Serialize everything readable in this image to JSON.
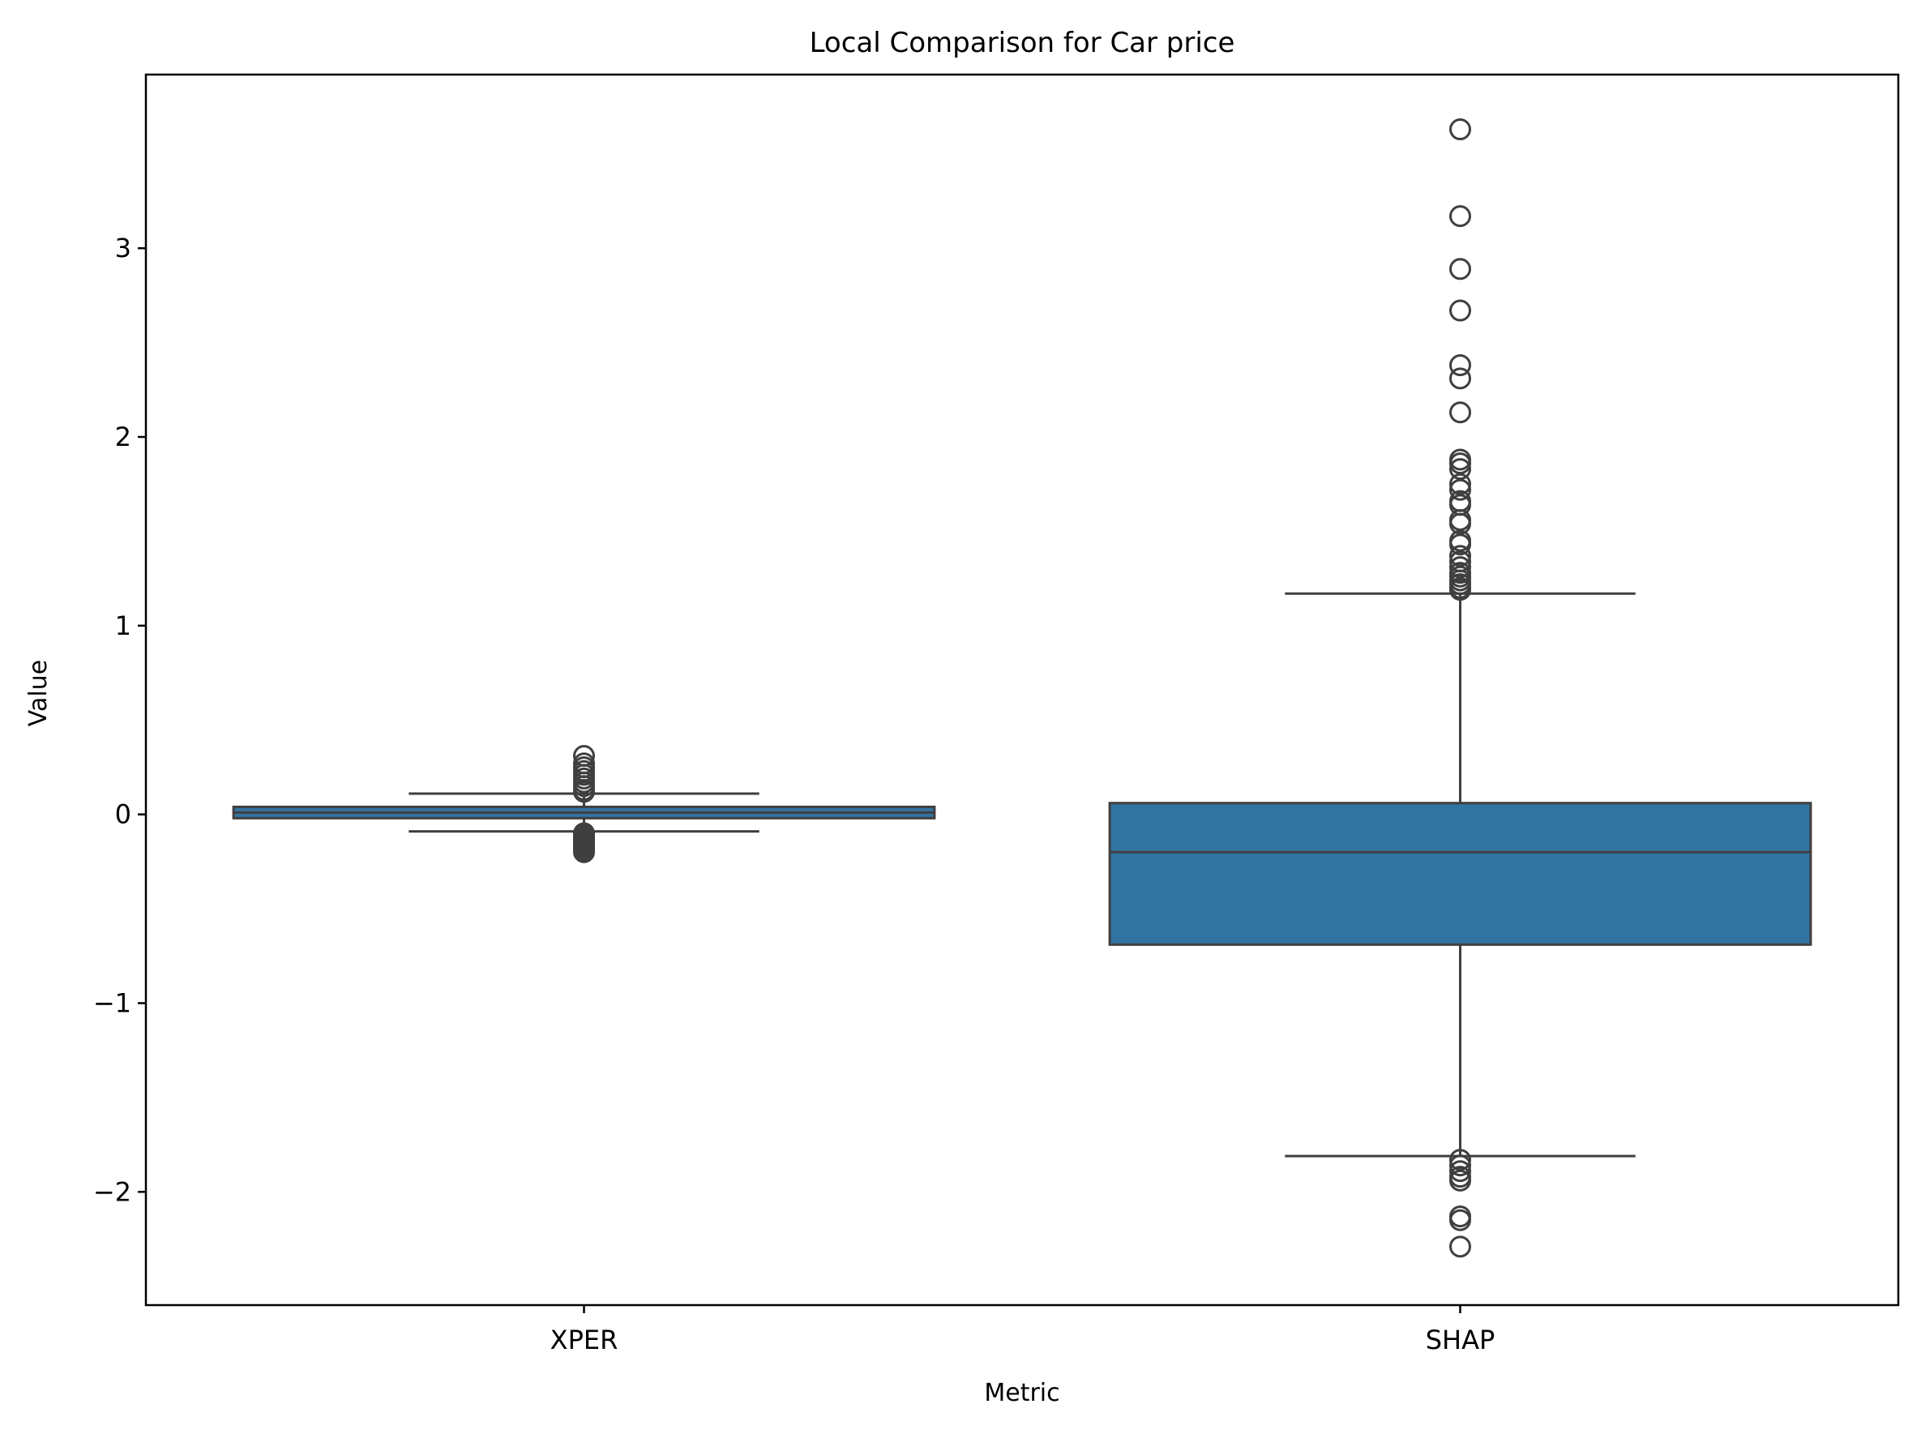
{
  "chart_data": {
    "type": "box",
    "title": "Local Comparison for Car price",
    "xlabel": "Metric",
    "ylabel": "Value",
    "ylim": [
      -2.6,
      3.92
    ],
    "yticks": [
      -2,
      -1,
      0,
      1,
      2,
      3
    ],
    "ytick_labels": [
      "−2",
      "−1",
      "0",
      "1",
      "2",
      "3"
    ],
    "categories": [
      "XPER",
      "SHAP"
    ],
    "box_color": "#3274a1",
    "line_color": "#3f3f3f",
    "boxes": [
      {
        "name": "XPER",
        "whisker_low": -0.09,
        "q1": -0.02,
        "median": 0.01,
        "q3": 0.04,
        "whisker_high": 0.11,
        "outliers": [
          0.31,
          0.27,
          0.25,
          0.23,
          0.21,
          0.19,
          0.17,
          0.15,
          0.13,
          0.12,
          -0.1,
          -0.11,
          -0.12,
          -0.13,
          -0.14,
          -0.15,
          -0.16,
          -0.17,
          -0.18,
          -0.19,
          -0.2
        ]
      },
      {
        "name": "SHAP",
        "whisker_low": -1.81,
        "q1": -0.69,
        "median": -0.2,
        "q3": 0.06,
        "whisker_high": 1.17,
        "outliers": [
          3.63,
          3.17,
          2.89,
          2.67,
          2.38,
          2.31,
          2.13,
          1.88,
          1.86,
          1.83,
          1.75,
          1.72,
          1.66,
          1.64,
          1.56,
          1.54,
          1.45,
          1.43,
          1.37,
          1.34,
          1.31,
          1.28,
          1.26,
          1.24,
          1.22,
          1.2,
          1.19,
          -1.83,
          -1.86,
          -1.89,
          -1.92,
          -1.94,
          -2.13,
          -2.15,
          -2.29
        ]
      }
    ]
  }
}
